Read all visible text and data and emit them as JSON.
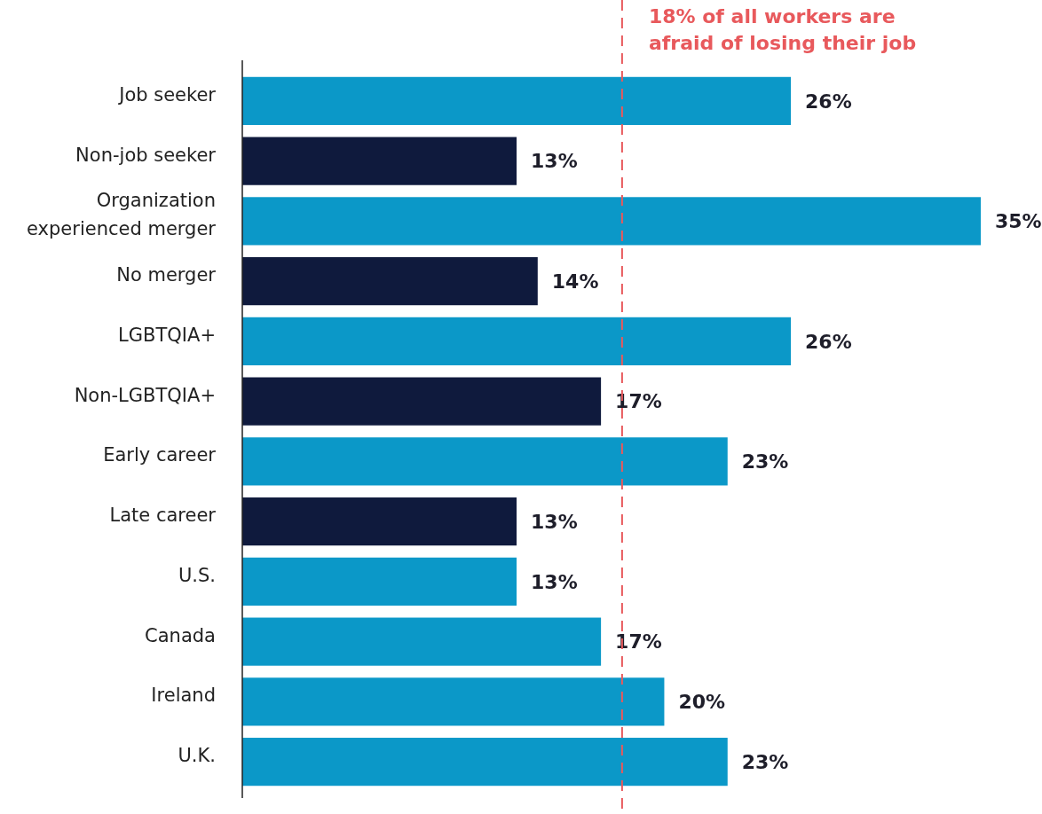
{
  "chart_data": {
    "type": "bar",
    "orientation": "horizontal",
    "value_labels": [
      "26%",
      "13%",
      "35%",
      "14%",
      "26%",
      "17%",
      "23%",
      "13%",
      "13%",
      "17%",
      "20%",
      "23%"
    ],
    "categories": [
      "Job seeker",
      "Non-job seeker",
      "Organization experienced merger",
      "No merger",
      "LGBTQIA+",
      "Non-LGBTQIA+",
      "Early career",
      "Late career",
      "U.S.",
      "Canada",
      "Ireland",
      "U.K."
    ],
    "values": [
      26,
      13,
      35,
      14,
      26,
      17,
      23,
      13,
      13,
      17,
      20,
      23
    ],
    "colors": [
      "#0b98c8",
      "#0f1a3d",
      "#0b98c8",
      "#0f1a3d",
      "#0b98c8",
      "#0f1a3d",
      "#0b98c8",
      "#0f1a3d",
      "#0b98c8",
      "#0b98c8",
      "#0b98c8",
      "#0b98c8"
    ],
    "ref_lines": [
      {
        "axis": "x",
        "value": 18,
        "label": "18% of all workers are afraid of losing their job",
        "color": "#e8595c",
        "line_style": "dashed"
      }
    ]
  }
}
